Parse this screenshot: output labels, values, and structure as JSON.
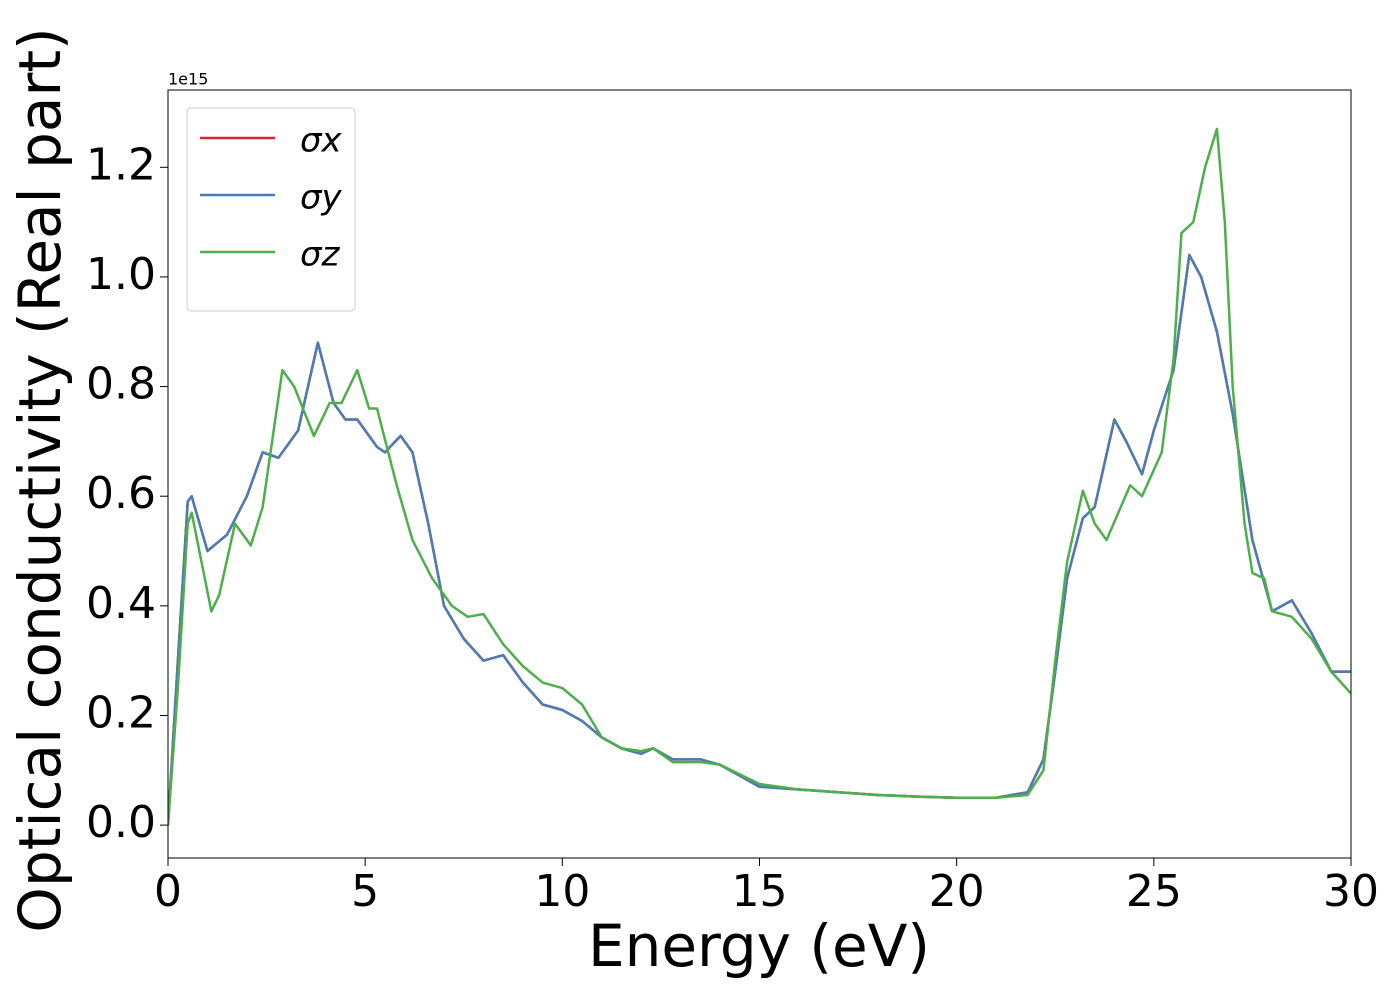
{
  "chart_data": {
    "type": "line",
    "xlabel": "Energy (eV)",
    "ylabel": "Optical conductivity (Real part)",
    "offset_label": "1e15",
    "xlim": [
      0,
      30
    ],
    "ylim": [
      -0.06,
      1.341
    ],
    "xticks": [
      0,
      5,
      10,
      15,
      20,
      25,
      30
    ],
    "yticks": [
      {
        "value": 0,
        "label": "0.0"
      },
      0.2,
      0.4,
      0.6,
      0.8,
      {
        "value": 1,
        "label": "1.0"
      },
      1.2
    ],
    "legend": "upper left",
    "series": [
      {
        "name": "σx",
        "color": "#d62728",
        "x": [
          0,
          0.25,
          0.5,
          0.6,
          1.0,
          1.5,
          2.0,
          2.4,
          2.8,
          3.3,
          3.8,
          4.2,
          4.5,
          4.8,
          5.3,
          5.5,
          5.9,
          6.2,
          6.6,
          7.0,
          7.5,
          8.0,
          8.5,
          9.0,
          9.5,
          10,
          10.5,
          11,
          11.5,
          12,
          12.3,
          12.8,
          13.5,
          14,
          15,
          16,
          17,
          18,
          19,
          20,
          21,
          21.8,
          22.2,
          22.5,
          22.8,
          23.2,
          23.5,
          24,
          24.3,
          24.7,
          25,
          25.5,
          25.9,
          26.2,
          26.6,
          27,
          27.5,
          28,
          28.5,
          29,
          29.5,
          30
        ],
        "values": [
          0,
          0.3,
          0.59,
          0.6,
          0.5,
          0.53,
          0.6,
          0.68,
          0.67,
          0.72,
          0.88,
          0.77,
          0.74,
          0.74,
          0.69,
          0.68,
          0.71,
          0.68,
          0.55,
          0.4,
          0.34,
          0.3,
          0.31,
          0.26,
          0.22,
          0.21,
          0.19,
          0.16,
          0.14,
          0.13,
          0.14,
          0.12,
          0.12,
          0.11,
          0.07,
          0.065,
          0.06,
          0.055,
          0.052,
          0.05,
          0.05,
          0.06,
          0.12,
          0.28,
          0.45,
          0.56,
          0.58,
          0.74,
          0.7,
          0.64,
          0.72,
          0.83,
          1.04,
          1.0,
          0.9,
          0.75,
          0.52,
          0.39,
          0.41,
          0.35,
          0.28,
          0.28
        ]
      },
      {
        "name": "σy",
        "color": "#4a7db4",
        "x": [
          0,
          0.25,
          0.5,
          0.6,
          1.0,
          1.5,
          2.0,
          2.4,
          2.8,
          3.3,
          3.8,
          4.2,
          4.5,
          4.8,
          5.3,
          5.5,
          5.9,
          6.2,
          6.6,
          7.0,
          7.5,
          8.0,
          8.5,
          9.0,
          9.5,
          10,
          10.5,
          11,
          11.5,
          12,
          12.3,
          12.8,
          13.5,
          14,
          15,
          16,
          17,
          18,
          19,
          20,
          21,
          21.8,
          22.2,
          22.5,
          22.8,
          23.2,
          23.5,
          24,
          24.3,
          24.7,
          25,
          25.5,
          25.9,
          26.2,
          26.6,
          27,
          27.5,
          28,
          28.5,
          29,
          29.5,
          30
        ],
        "values": [
          0,
          0.3,
          0.59,
          0.6,
          0.5,
          0.53,
          0.6,
          0.68,
          0.67,
          0.72,
          0.88,
          0.77,
          0.74,
          0.74,
          0.69,
          0.68,
          0.71,
          0.68,
          0.55,
          0.4,
          0.34,
          0.3,
          0.31,
          0.26,
          0.22,
          0.21,
          0.19,
          0.16,
          0.14,
          0.13,
          0.14,
          0.12,
          0.12,
          0.11,
          0.07,
          0.065,
          0.06,
          0.055,
          0.052,
          0.05,
          0.05,
          0.06,
          0.12,
          0.28,
          0.45,
          0.56,
          0.58,
          0.74,
          0.7,
          0.64,
          0.72,
          0.83,
          1.04,
          1.0,
          0.9,
          0.75,
          0.52,
          0.39,
          0.41,
          0.35,
          0.28,
          0.28
        ]
      },
      {
        "name": "σz",
        "color": "#4daf4a",
        "x": [
          0,
          0.25,
          0.5,
          0.6,
          1.1,
          1.3,
          1.7,
          2.1,
          2.4,
          2.9,
          3.2,
          3.7,
          4.1,
          4.4,
          4.8,
          5.1,
          5.3,
          5.8,
          6.2,
          6.7,
          7.2,
          7.6,
          8.0,
          8.5,
          9,
          9.5,
          10,
          10.5,
          11,
          11.5,
          12,
          12.3,
          12.8,
          13.5,
          14,
          15,
          16,
          17,
          18,
          19,
          20,
          21,
          21.8,
          22.2,
          22.5,
          22.8,
          23.2,
          23.5,
          23.8,
          24.4,
          24.7,
          25.2,
          25.5,
          25.7,
          26,
          26.3,
          26.6,
          26.8,
          27,
          27.3,
          27.5,
          27.8,
          28,
          28.5,
          29,
          29.5,
          30
        ],
        "values": [
          0,
          0.25,
          0.55,
          0.57,
          0.39,
          0.42,
          0.55,
          0.51,
          0.58,
          0.83,
          0.8,
          0.71,
          0.77,
          0.77,
          0.83,
          0.76,
          0.76,
          0.62,
          0.52,
          0.45,
          0.4,
          0.38,
          0.385,
          0.33,
          0.29,
          0.26,
          0.25,
          0.22,
          0.16,
          0.14,
          0.135,
          0.14,
          0.115,
          0.115,
          0.11,
          0.075,
          0.065,
          0.06,
          0.055,
          0.052,
          0.05,
          0.05,
          0.055,
          0.1,
          0.3,
          0.48,
          0.61,
          0.55,
          0.52,
          0.62,
          0.6,
          0.68,
          0.85,
          1.08,
          1.1,
          1.2,
          1.27,
          1.1,
          0.8,
          0.55,
          0.46,
          0.45,
          0.39,
          0.38,
          0.34,
          0.28,
          0.24
        ]
      }
    ]
  }
}
